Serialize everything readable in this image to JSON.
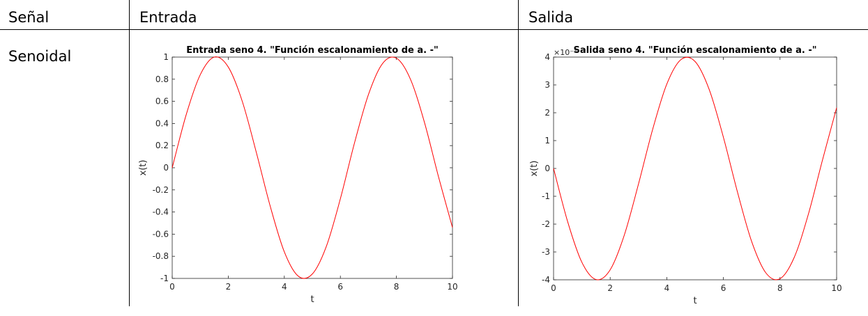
{
  "table": {
    "headers": [
      "Señal",
      "Entrada",
      "Salida"
    ],
    "row_label": "Senoidal"
  },
  "chart_data": [
    {
      "type": "line",
      "title": "Entrada seno 4. \"Función escalonamiento de a. -\"",
      "xlabel": "t",
      "ylabel": "x(t)",
      "xlim": [
        0,
        10
      ],
      "ylim": [
        -1,
        1
      ],
      "xticks": [
        0,
        2,
        4,
        6,
        8,
        10
      ],
      "yticks": [
        -1,
        -0.8,
        -0.6,
        -0.4,
        -0.2,
        0,
        0.2,
        0.4,
        0.6,
        0.8,
        1
      ],
      "ytick_labels": [
        "-1",
        "-0.8",
        "-0.6",
        "-0.4",
        "-0.2",
        "0",
        "0.2",
        "0.4",
        "0.6",
        "0.8",
        "1"
      ],
      "grid": false,
      "series_color": "#ff0000",
      "series": [
        {
          "x": [
            0,
            0.5,
            1,
            1.5,
            2,
            2.5,
            3,
            3.5,
            4,
            4.5,
            5,
            5.5,
            6,
            6.5,
            7,
            7.5,
            8,
            8.5,
            9,
            9.5,
            10
          ],
          "y": [
            0,
            0.48,
            0.84,
            1.0,
            0.91,
            0.6,
            0.14,
            -0.35,
            -0.76,
            -0.98,
            -0.96,
            -0.71,
            -0.28,
            0.22,
            0.66,
            0.94,
            0.99,
            0.8,
            0.41,
            -0.08,
            -0.54
          ]
        }
      ]
    },
    {
      "type": "line",
      "title": "Salida seno 4. \"Función escalonamiento de a. -\"",
      "xlabel": "t",
      "ylabel": "x(t)",
      "xlim": [
        0,
        10
      ],
      "ylim": [
        -4,
        4
      ],
      "y_multiplier": "×10⁻³",
      "xticks": [
        0,
        2,
        4,
        6,
        8,
        10
      ],
      "yticks": [
        -4,
        -3,
        -2,
        -1,
        0,
        1,
        2,
        3,
        4
      ],
      "ytick_labels": [
        "-4",
        "-3",
        "-2",
        "-1",
        "0",
        "1",
        "2",
        "3",
        "4"
      ],
      "grid": false,
      "series_color": "#ff0000",
      "series": [
        {
          "x": [
            0,
            0.5,
            1,
            1.5,
            2,
            2.5,
            3,
            3.5,
            4,
            4.5,
            5,
            5.5,
            6,
            6.5,
            7,
            7.5,
            8,
            8.5,
            9,
            9.5,
            10
          ],
          "y": [
            0,
            -1.92,
            -3.37,
            -3.99,
            -3.64,
            -2.39,
            -0.56,
            1.4,
            3.03,
            3.91,
            3.84,
            2.83,
            1.12,
            -0.86,
            -2.63,
            -3.75,
            -3.96,
            -3.2,
            -1.65,
            0.3,
            2.18
          ]
        }
      ]
    }
  ]
}
